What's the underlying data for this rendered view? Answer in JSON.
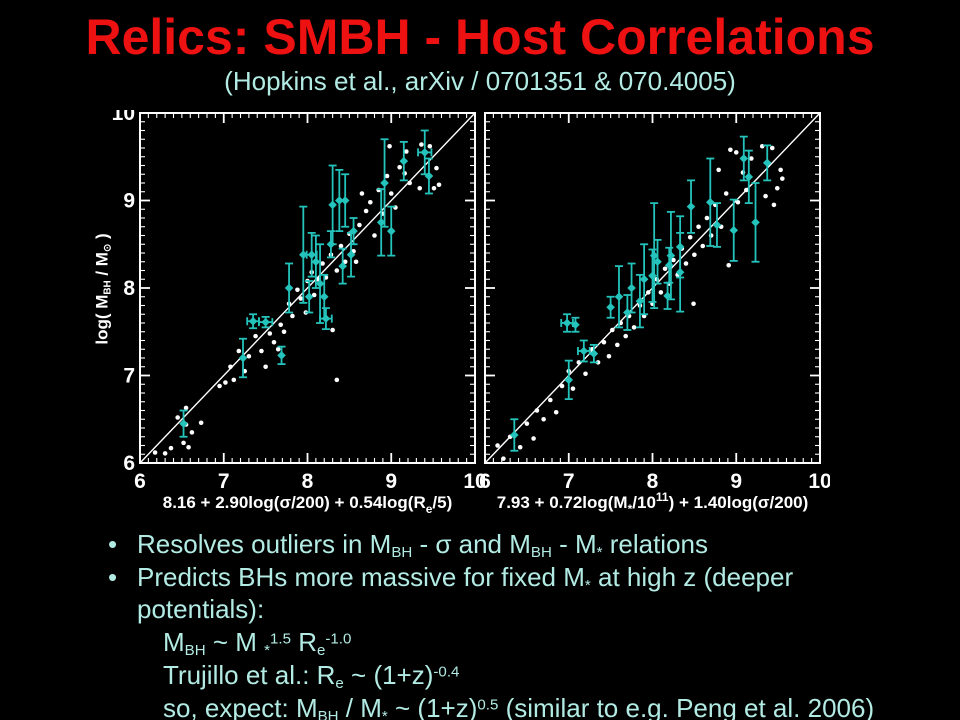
{
  "slide": {
    "title": "Relics: SMBH - Host Correlations",
    "subtitle": "(Hopkins et al., arXiv / 0701351 & 070.4005)",
    "colors": {
      "background": "#000000",
      "title_red": "#ee1111",
      "body_text_cyan": "#b2ebe3",
      "plot_white": "#ffffff",
      "marker_cyan": "#24c4bc"
    },
    "bullet_icon": "•"
  },
  "bullets": {
    "items": [
      {
        "bullet": true,
        "text": "Resolves outliers in MBH - σ and MBH - M* relations",
        "segments": [
          {
            "t": "Resolves outliers in M"
          },
          {
            "t": "BH",
            "s": "sub"
          },
          {
            "t": " - σ and M"
          },
          {
            "t": "BH",
            "s": "sub"
          },
          {
            "t": " - M"
          },
          {
            "t": "*",
            "s": "sub"
          },
          {
            "t": " relations"
          }
        ]
      },
      {
        "bullet": true,
        "text": "Predicts BHs more massive for fixed M* at high z (deeper",
        "segments": [
          {
            "t": "Predicts BHs more massive for fixed M"
          },
          {
            "t": "*",
            "s": "sub"
          },
          {
            "t": " at high z (deeper"
          }
        ]
      },
      {
        "bullet": false,
        "text": "potentials):",
        "segments": [
          {
            "t": "potentials):"
          }
        ]
      },
      {
        "bullet": false,
        "text": "MBH ~ M*^1.5 Re^-1.0",
        "segments": [
          {
            "t": "M"
          },
          {
            "t": "BH",
            "s": "sub"
          },
          {
            "t": " ~ M "
          },
          {
            "t": "*",
            "s": "sub"
          },
          {
            "t": "1.5",
            "s": "sup"
          },
          {
            "t": " R"
          },
          {
            "t": "e",
            "s": "sub"
          },
          {
            "t": "-1.0",
            "s": "sup"
          }
        ]
      },
      {
        "bullet": false,
        "text": "Trujillo et al.: Re ~ (1+z)^-0.4",
        "segments": [
          {
            "t": "Trujillo et al.: R"
          },
          {
            "t": "e",
            "s": "sub"
          },
          {
            "t": " ~ (1+z)"
          },
          {
            "t": "-0.4",
            "s": "sup"
          }
        ]
      },
      {
        "bullet": false,
        "text": "so, expect: MBH / M* ~ (1+z)^0.5 (similar to e.g. Peng et al. 2006)",
        "segments": [
          {
            "t": "so, expect: M"
          },
          {
            "t": "BH",
            "s": "sub"
          },
          {
            "t": " / M"
          },
          {
            "t": "*",
            "s": "sub"
          },
          {
            "t": " ~ (1+z)"
          },
          {
            "t": "0.5",
            "s": "sup"
          },
          {
            "t": " (similar to e.g. Peng et al. 2006)"
          }
        ]
      }
    ]
  },
  "chart_data": [
    {
      "type": "scatter",
      "title": "",
      "xlabel": "8.16 + 2.90log(σ/200) + 0.54log(Re/5)",
      "xlabel_segments": [
        {
          "t": "8.16 + 2.90log(σ/200) + 0.54log(R"
        },
        {
          "t": "e",
          "s": "sub"
        },
        {
          "t": "/5)"
        }
      ],
      "ylabel": "log( MBH / M⊙ )",
      "ylabel_segments": [
        {
          "t": "log( M"
        },
        {
          "t": "BH",
          "s": "sub"
        },
        {
          "t": " / M"
        },
        {
          "t": "⊙",
          "s": "sub"
        },
        {
          "t": " )"
        }
      ],
      "xlim": [
        6,
        10
      ],
      "ylim": [
        6,
        10
      ],
      "xticks": [
        6,
        7,
        8,
        9,
        10
      ],
      "yticks": [
        6,
        7,
        8,
        9,
        10
      ],
      "minor_tick_step": 0.1,
      "grid": false,
      "identity_line": true,
      "series": [
        {
          "name": "white-dots",
          "marker": "dot",
          "color": "#ffffff",
          "points": [
            [
              6.18,
              6.12
            ],
            [
              6.3,
              6.11
            ],
            [
              6.37,
              6.17
            ],
            [
              6.52,
              6.23
            ],
            [
              6.55,
              6.44
            ],
            [
              6.55,
              6.63
            ],
            [
              6.62,
              6.35
            ],
            [
              6.73,
              6.46
            ],
            [
              6.58,
              6.18
            ],
            [
              6.45,
              6.52
            ],
            [
              6.95,
              6.88
            ],
            [
              7.02,
              6.92
            ],
            [
              7.08,
              7.1
            ],
            [
              7.12,
              6.95
            ],
            [
              7.18,
              7.28
            ],
            [
              7.25,
              7.05
            ],
            [
              7.3,
              7.22
            ],
            [
              7.38,
              7.45
            ],
            [
              7.45,
              7.28
            ],
            [
              7.5,
              7.1
            ],
            [
              7.55,
              7.48
            ],
            [
              7.6,
              7.38
            ],
            [
              7.65,
              7.3
            ],
            [
              7.68,
              7.58
            ],
            [
              7.72,
              7.5
            ],
            [
              7.78,
              7.82
            ],
            [
              7.82,
              7.68
            ],
            [
              7.88,
              7.98
            ],
            [
              7.92,
              7.88
            ],
            [
              7.98,
              7.72
            ],
            [
              8.0,
              8.08
            ],
            [
              8.05,
              8.18
            ],
            [
              8.08,
              7.92
            ],
            [
              8.12,
              8.1
            ],
            [
              8.18,
              8.28
            ],
            [
              8.22,
              8.12
            ],
            [
              8.28,
              8.38
            ],
            [
              8.3,
              7.52
            ],
            [
              8.35,
              6.95
            ],
            [
              8.35,
              8.2
            ],
            [
              8.4,
              8.48
            ],
            [
              8.45,
              8.3
            ],
            [
              8.5,
              8.62
            ],
            [
              8.55,
              8.42
            ],
            [
              8.58,
              8.3
            ],
            [
              8.62,
              8.72
            ],
            [
              8.65,
              9.08
            ],
            [
              8.7,
              8.88
            ],
            [
              8.75,
              8.98
            ],
            [
              8.8,
              8.6
            ],
            [
              8.85,
              9.12
            ],
            [
              8.9,
              8.85
            ],
            [
              8.95,
              9.28
            ],
            [
              8.98,
              9.62
            ],
            [
              9.0,
              9.08
            ],
            [
              9.05,
              8.92
            ],
            [
              9.1,
              9.38
            ],
            [
              9.16,
              9.31
            ],
            [
              9.18,
              9.56
            ],
            [
              9.22,
              9.2
            ],
            [
              9.34,
              9.14
            ],
            [
              9.36,
              9.64
            ],
            [
              9.46,
              9.62
            ],
            [
              9.51,
              9.14
            ],
            [
              9.54,
              9.37
            ],
            [
              9.57,
              9.18
            ]
          ]
        },
        {
          "name": "cyan-errorbar-points",
          "marker": "diamond",
          "color": "#24c4bc",
          "points": [
            [
              6.52,
              6.45,
              0.15
            ],
            [
              7.23,
              7.2,
              0.22
            ],
            [
              7.35,
              7.62,
              0.08,
              0.07
            ],
            [
              7.5,
              7.61,
              0.06,
              0.08
            ],
            [
              7.69,
              7.23,
              0.1
            ],
            [
              7.78,
              8.0,
              0.28
            ],
            [
              7.95,
              8.38,
              0.55
            ],
            [
              8.02,
              7.9,
              0.18
            ],
            [
              8.05,
              8.38,
              0.25,
              0.06
            ],
            [
              8.1,
              8.3,
              0.3
            ],
            [
              8.15,
              8.05,
              0.45
            ],
            [
              8.2,
              7.9,
              0.25
            ],
            [
              8.22,
              7.65,
              0.12,
              0.07
            ],
            [
              8.28,
              8.5,
              0.15
            ],
            [
              8.3,
              8.95,
              0.45
            ],
            [
              8.38,
              9.0,
              0.35
            ],
            [
              8.42,
              8.25,
              0.2
            ],
            [
              8.45,
              9.0,
              0.3
            ],
            [
              8.52,
              8.38,
              0.25
            ],
            [
              8.55,
              8.65,
              0.15
            ],
            [
              8.88,
              8.75,
              0.38
            ],
            [
              8.92,
              9.2,
              0.5
            ],
            [
              9.0,
              8.65,
              0.28
            ],
            [
              9.15,
              9.45,
              0.22
            ],
            [
              9.4,
              9.55,
              0.25,
              0.08
            ],
            [
              9.45,
              9.28,
              0.2
            ]
          ]
        }
      ]
    },
    {
      "type": "scatter",
      "title": "",
      "xlabel": "7.93 + 0.72log(M*/10^11) + 1.40log(σ/200)",
      "xlabel_segments": [
        {
          "t": "7.93 + 0.72log(M"
        },
        {
          "t": "*",
          "s": "sub"
        },
        {
          "t": "/10"
        },
        {
          "t": "11",
          "s": "sup"
        },
        {
          "t": ") + 1.40log(σ/200)"
        }
      ],
      "xlim": [
        6,
        10
      ],
      "ylim": [
        6,
        10
      ],
      "xticks": [
        6,
        7,
        8,
        9,
        10
      ],
      "yticks": [
        6,
        7,
        8,
        9,
        10
      ],
      "minor_tick_step": 0.1,
      "grid": false,
      "identity_line": true,
      "series": [
        {
          "name": "white-dots",
          "marker": "dot",
          "color": "#ffffff",
          "points": [
            [
              6.15,
              6.2
            ],
            [
              6.22,
              6.05
            ],
            [
              6.3,
              6.3
            ],
            [
              6.42,
              6.18
            ],
            [
              6.5,
              6.45
            ],
            [
              6.58,
              6.28
            ],
            [
              6.62,
              6.6
            ],
            [
              6.7,
              6.5
            ],
            [
              6.78,
              6.72
            ],
            [
              6.85,
              6.58
            ],
            [
              6.92,
              6.88
            ],
            [
              7.0,
              7.05
            ],
            [
              7.05,
              6.85
            ],
            [
              7.12,
              7.15
            ],
            [
              7.2,
              7.02
            ],
            [
              7.28,
              7.3
            ],
            [
              7.35,
              7.15
            ],
            [
              7.42,
              7.38
            ],
            [
              7.48,
              7.22
            ],
            [
              7.52,
              7.52
            ],
            [
              7.58,
              7.35
            ],
            [
              7.62,
              7.6
            ],
            [
              7.68,
              7.45
            ],
            [
              7.72,
              7.68
            ],
            [
              7.78,
              7.55
            ],
            [
              7.85,
              7.8
            ],
            [
              7.9,
              7.68
            ],
            [
              7.95,
              7.95
            ],
            [
              8.0,
              7.82
            ],
            [
              8.05,
              8.1
            ],
            [
              8.1,
              7.95
            ],
            [
              8.15,
              8.22
            ],
            [
              8.2,
              8.05
            ],
            [
              8.25,
              8.32
            ],
            [
              8.3,
              8.15
            ],
            [
              8.35,
              8.45
            ],
            [
              8.4,
              8.28
            ],
            [
              8.45,
              8.58
            ],
            [
              8.49,
              7.82
            ],
            [
              8.5,
              8.38
            ],
            [
              8.55,
              8.7
            ],
            [
              8.6,
              8.48
            ],
            [
              8.65,
              8.8
            ],
            [
              8.7,
              8.6
            ],
            [
              8.75,
              8.95
            ],
            [
              8.79,
              9.35
            ],
            [
              8.82,
              8.7
            ],
            [
              8.88,
              9.08
            ],
            [
              8.91,
              8.26
            ],
            [
              8.93,
              9.58
            ],
            [
              9.0,
              9.55
            ],
            [
              9.02,
              8.98
            ],
            [
              9.08,
              9.32
            ],
            [
              9.12,
              9.12
            ],
            [
              9.18,
              9.48
            ],
            [
              9.31,
              9.62
            ],
            [
              9.43,
              9.6
            ],
            [
              9.53,
              9.35
            ],
            [
              9.55,
              9.25
            ],
            [
              9.49,
              9.14
            ],
            [
              9.35,
              9.05
            ],
            [
              9.45,
              8.95
            ]
          ]
        },
        {
          "name": "cyan-errorbar-points",
          "marker": "diamond",
          "color": "#24c4bc",
          "points": [
            [
              6.35,
              6.32,
              0.18
            ],
            [
              7.0,
              6.95,
              0.22
            ],
            [
              7.18,
              7.28,
              0.12,
              0.07
            ],
            [
              7.3,
              7.25,
              0.1
            ],
            [
              6.98,
              7.6,
              0.1,
              0.07
            ],
            [
              7.08,
              7.58,
              0.08
            ],
            [
              7.5,
              7.78,
              0.12
            ],
            [
              7.6,
              7.9,
              0.35
            ],
            [
              7.7,
              7.72,
              0.2
            ],
            [
              7.75,
              8.0,
              0.28
            ],
            [
              7.85,
              7.85,
              0.3
            ],
            [
              7.9,
              8.1,
              0.4
            ],
            [
              8.0,
              8.14,
              0.3
            ],
            [
              8.02,
              8.37,
              0.6
            ],
            [
              8.06,
              8.3,
              0.25
            ],
            [
              8.2,
              8.26,
              0.2
            ],
            [
              8.22,
              8.37,
              0.5
            ],
            [
              8.33,
              8.47,
              0.35
            ],
            [
              8.33,
              8.18,
              0.45
            ],
            [
              8.18,
              7.91,
              0.15
            ],
            [
              8.46,
              8.93,
              0.3
            ],
            [
              8.69,
              8.98,
              0.5
            ],
            [
              8.77,
              8.72,
              0.25
            ],
            [
              8.97,
              8.66,
              0.35
            ],
            [
              9.23,
              8.75,
              0.45
            ],
            [
              9.09,
              9.48,
              0.25
            ],
            [
              9.15,
              9.27,
              0.3
            ],
            [
              9.37,
              9.43,
              0.2
            ]
          ]
        }
      ]
    }
  ]
}
